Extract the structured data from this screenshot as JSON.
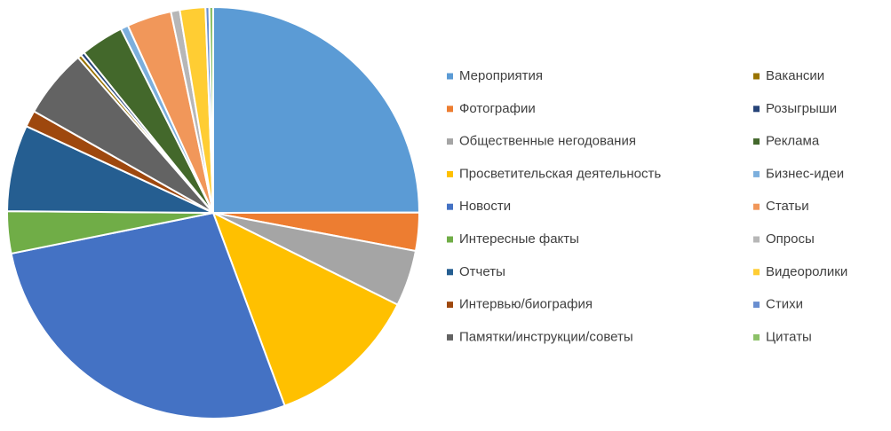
{
  "chart_data": {
    "type": "pie",
    "categories": [
      "Мероприятия",
      "Фотографии",
      "Общественные негодования",
      "Просветительская деятельность",
      "Новости",
      "Интересные факты",
      "Отчеты",
      "Интервью/биография",
      "Памятки/инструкции/советы",
      "Вакансии",
      "Розыгрыши",
      "Реклама",
      "Бизнес-идеи",
      "Статьи",
      "Опросы",
      "Видеоролики",
      "Стихи",
      "Цитаты"
    ],
    "values": [
      25,
      3,
      4.4,
      12,
      27.5,
      3.3,
      6.8,
      1.3,
      5.4,
      0.3,
      0.3,
      3.4,
      0.6,
      3.5,
      0.7,
      2,
      0.3,
      0.3
    ],
    "colors": [
      "#5B9BD5",
      "#ED7D31",
      "#A5A5A5",
      "#FFC000",
      "#4472C4",
      "#70AD47",
      "#255E91",
      "#9E480E",
      "#636363",
      "#997300",
      "#264478",
      "#43682B",
      "#7CAFDD",
      "#F1975A",
      "#B7B7B7",
      "#FFCD33",
      "#698ED0",
      "#8CC168"
    ],
    "legend": "right"
  }
}
